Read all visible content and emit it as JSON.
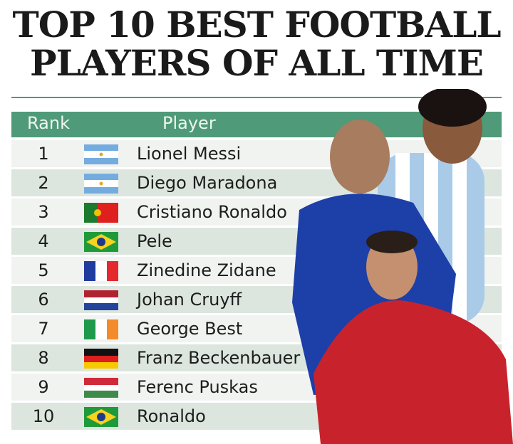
{
  "title_line1": "TOP 10 BEST FOOTBALL",
  "title_line2": "PLAYERS OF ALL TIME",
  "table": {
    "headers": {
      "rank": "Rank",
      "player": "Player"
    },
    "rows": [
      {
        "rank": "1",
        "player": "Lionel Messi",
        "flag": "argentina"
      },
      {
        "rank": "2",
        "player": "Diego Maradona",
        "flag": "argentina"
      },
      {
        "rank": "3",
        "player": "Cristiano Ronaldo",
        "flag": "portugal"
      },
      {
        "rank": "4",
        "player": "Pele",
        "flag": "brazil"
      },
      {
        "rank": "5",
        "player": "Zinedine Zidane",
        "flag": "france"
      },
      {
        "rank": "6",
        "player": "Johan Cruyff",
        "flag": "netherlands"
      },
      {
        "rank": "7",
        "player": "George Best",
        "flag": "ireland"
      },
      {
        "rank": "8",
        "player": "Franz Beckenbauer",
        "flag": "germany"
      },
      {
        "rank": "9",
        "player": "Ferenc Puskas",
        "flag": "hungary"
      },
      {
        "rank": "10",
        "player": "Ronaldo",
        "flag": "brazil"
      }
    ]
  },
  "colors": {
    "header": "#4f9a78",
    "row_light": "#f1f3f1",
    "row_dark": "#dce6de"
  }
}
